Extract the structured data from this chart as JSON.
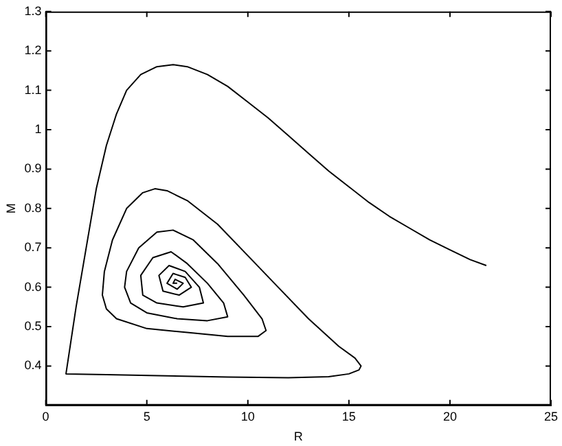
{
  "chart_data": {
    "type": "line",
    "xlabel": "R",
    "ylabel": "M",
    "xlim": [
      0,
      25
    ],
    "ylim": [
      0.3,
      1.3
    ],
    "xticks": [
      0,
      5,
      10,
      15,
      20,
      25
    ],
    "yticks": [
      0.4,
      0.5,
      0.6,
      0.7,
      0.8,
      0.9,
      1,
      1.1,
      1.2,
      1.3
    ],
    "grid": false,
    "legend": false,
    "marker": "none",
    "line_style": "solid",
    "series": [
      {
        "color": "#000000",
        "x": [
          21.8,
          21,
          20,
          19,
          18,
          17,
          16,
          15,
          14,
          13,
          12,
          11,
          10,
          9,
          8,
          7,
          6.3,
          5.5,
          4.7,
          4,
          3.5,
          3,
          2.5,
          2,
          1.5,
          1,
          3,
          6,
          9,
          12,
          14,
          15,
          15.5,
          15.6,
          15.3,
          14.5,
          13,
          11.5,
          10,
          8.5,
          7,
          6,
          5.4,
          4.8,
          4,
          3.3,
          2.9,
          2.8,
          3,
          3.5,
          5,
          7,
          9,
          10.5,
          10.9,
          10.7,
          9.8,
          8.5,
          7.3,
          6.3,
          5.5,
          4.6,
          4,
          3.9,
          4.2,
          5,
          6.5,
          8,
          9,
          8.8,
          8,
          7,
          6.2,
          5.3,
          4.7,
          4.8,
          5.5,
          6.8,
          7.8,
          7.6,
          6.9,
          6.1,
          5.6,
          5.8,
          6.6,
          7.2,
          6.9,
          6.3,
          6,
          6.5,
          6.8,
          6.4,
          6.3,
          6.5
        ],
        "values": [
          0.655,
          0.67,
          0.695,
          0.72,
          0.75,
          0.78,
          0.815,
          0.855,
          0.895,
          0.94,
          0.985,
          1.03,
          1.07,
          1.11,
          1.14,
          1.16,
          1.165,
          1.16,
          1.14,
          1.1,
          1.04,
          0.96,
          0.85,
          0.7,
          0.55,
          0.38,
          0.378,
          0.375,
          0.372,
          0.37,
          0.373,
          0.38,
          0.39,
          0.4,
          0.42,
          0.45,
          0.52,
          0.6,
          0.68,
          0.76,
          0.82,
          0.845,
          0.85,
          0.84,
          0.8,
          0.72,
          0.64,
          0.58,
          0.545,
          0.52,
          0.495,
          0.485,
          0.475,
          0.475,
          0.49,
          0.52,
          0.58,
          0.66,
          0.72,
          0.745,
          0.74,
          0.7,
          0.64,
          0.6,
          0.56,
          0.535,
          0.52,
          0.515,
          0.525,
          0.56,
          0.61,
          0.66,
          0.69,
          0.675,
          0.63,
          0.58,
          0.56,
          0.55,
          0.56,
          0.6,
          0.64,
          0.655,
          0.63,
          0.59,
          0.58,
          0.6,
          0.625,
          0.635,
          0.61,
          0.595,
          0.61,
          0.62,
          0.61,
          0.61
        ]
      }
    ]
  }
}
